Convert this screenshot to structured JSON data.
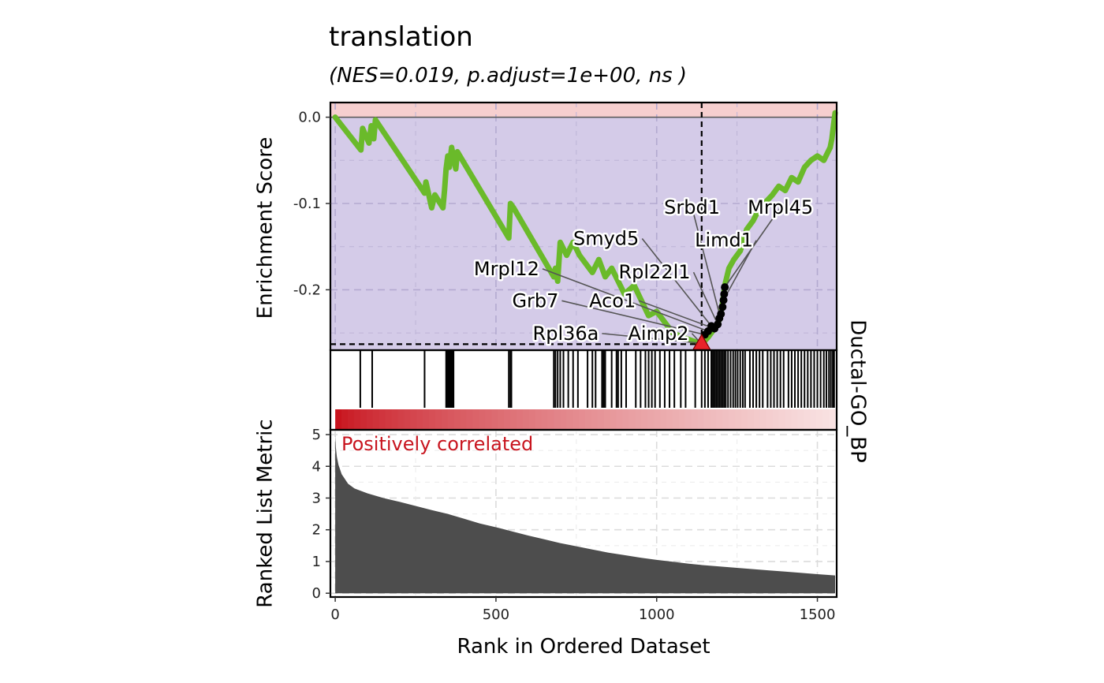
{
  "chart_data": {
    "type": "line",
    "title": "translation",
    "subtitle": "(NES=0.019, p.adjust=1e+00, ns  )",
    "facet_label": "Ductal-GO_BP",
    "xlabel": "Rank in Ordered Dataset",
    "x_ticks": [
      "0",
      "500",
      "1000",
      "1500"
    ],
    "xlim": [
      -15,
      1560
    ],
    "n_genes": 1555,
    "colors": {
      "running_score": "#6aba2a",
      "negative_bg": "#d4cbe8",
      "positive_bg": "#f6cfcf",
      "metric_area": "#4d4d4d",
      "gradient_high": "#c8141e",
      "gradient_low": "#f9e4e4",
      "annotation": "#c8141e",
      "leading_edge_marker": "#e8232a"
    },
    "enrichment_panel": {
      "ylabel": "Enrichment Score",
      "ylim": [
        -0.27,
        0.017
      ],
      "y_ticks": [
        "0.0",
        "-0.1",
        "-0.2"
      ],
      "y_tick_values": [
        0.0,
        -0.1,
        -0.2
      ],
      "max_deviation": {
        "rank": 1140,
        "es": -0.263
      },
      "running_score": [
        [
          0,
          0.0
        ],
        [
          80,
          -0.038
        ],
        [
          85,
          -0.013
        ],
        [
          105,
          -0.03
        ],
        [
          112,
          -0.01
        ],
        [
          120,
          -0.025
        ],
        [
          125,
          -0.003
        ],
        [
          278,
          -0.088
        ],
        [
          282,
          -0.075
        ],
        [
          300,
          -0.105
        ],
        [
          310,
          -0.09
        ],
        [
          335,
          -0.105
        ],
        [
          340,
          -0.085
        ],
        [
          345,
          -0.06
        ],
        [
          350,
          -0.045
        ],
        [
          355,
          -0.058
        ],
        [
          362,
          -0.035
        ],
        [
          375,
          -0.06
        ],
        [
          380,
          -0.04
        ],
        [
          540,
          -0.14
        ],
        [
          545,
          -0.1
        ],
        [
          555,
          -0.105
        ],
        [
          680,
          -0.185
        ],
        [
          685,
          -0.175
        ],
        [
          692,
          -0.19
        ],
        [
          700,
          -0.145
        ],
        [
          720,
          -0.16
        ],
        [
          740,
          -0.145
        ],
        [
          760,
          -0.16
        ],
        [
          800,
          -0.18
        ],
        [
          820,
          -0.165
        ],
        [
          840,
          -0.185
        ],
        [
          860,
          -0.175
        ],
        [
          900,
          -0.205
        ],
        [
          930,
          -0.195
        ],
        [
          975,
          -0.23
        ],
        [
          1000,
          -0.225
        ],
        [
          1050,
          -0.25
        ],
        [
          1080,
          -0.255
        ],
        [
          1140,
          -0.263
        ],
        [
          1160,
          -0.255
        ],
        [
          1180,
          -0.245
        ],
        [
          1195,
          -0.235
        ],
        [
          1205,
          -0.215
        ],
        [
          1212,
          -0.195
        ],
        [
          1225,
          -0.175
        ],
        [
          1240,
          -0.165
        ],
        [
          1260,
          -0.155
        ],
        [
          1280,
          -0.13
        ],
        [
          1300,
          -0.12
        ],
        [
          1320,
          -0.105
        ],
        [
          1340,
          -0.098
        ],
        [
          1360,
          -0.09
        ],
        [
          1380,
          -0.08
        ],
        [
          1400,
          -0.085
        ],
        [
          1420,
          -0.07
        ],
        [
          1440,
          -0.075
        ],
        [
          1460,
          -0.058
        ],
        [
          1480,
          -0.05
        ],
        [
          1500,
          -0.045
        ],
        [
          1520,
          -0.05
        ],
        [
          1540,
          -0.035
        ],
        [
          1545,
          -0.025
        ],
        [
          1550,
          -0.01
        ],
        [
          1555,
          0.005
        ]
      ],
      "leading_edge_points": [
        [
          1140,
          -0.263
        ],
        [
          1150,
          -0.252
        ],
        [
          1160,
          -0.248
        ],
        [
          1170,
          -0.242
        ],
        [
          1180,
          -0.245
        ],
        [
          1190,
          -0.24
        ],
        [
          1195,
          -0.233
        ],
        [
          1200,
          -0.228
        ],
        [
          1205,
          -0.22
        ],
        [
          1208,
          -0.212
        ],
        [
          1210,
          -0.205
        ],
        [
          1212,
          -0.197
        ]
      ],
      "gene_labels": [
        {
          "text": "Srbd1",
          "lx": 1110,
          "ly": -0.112,
          "px": 1200,
          "py": -0.235,
          "anchor": "middle"
        },
        {
          "text": "Mrpl45",
          "lx": 1385,
          "ly": -0.112,
          "px": 1212,
          "py": -0.197,
          "anchor": "middle"
        },
        {
          "text": "Limd1",
          "lx": 1300,
          "ly": -0.15,
          "px": 1208,
          "py": -0.212,
          "anchor": "end"
        },
        {
          "text": "Smyd5",
          "lx": 945,
          "ly": -0.148,
          "px": 1170,
          "py": -0.242,
          "anchor": "end"
        },
        {
          "text": "Rpl22l1",
          "lx": 1105,
          "ly": -0.187,
          "px": 1190,
          "py": -0.24,
          "anchor": "end"
        },
        {
          "text": "Mrpl12",
          "lx": 635,
          "ly": -0.183,
          "px": 1160,
          "py": -0.248,
          "anchor": "end"
        },
        {
          "text": "Grb7",
          "lx": 695,
          "ly": -0.22,
          "px": 1150,
          "py": -0.252,
          "anchor": "end"
        },
        {
          "text": "Aco1",
          "lx": 935,
          "ly": -0.22,
          "px": 1180,
          "py": -0.245,
          "anchor": "end"
        },
        {
          "text": "Rpl36a",
          "lx": 820,
          "ly": -0.258,
          "px": 1140,
          "py": -0.262,
          "anchor": "end"
        },
        {
          "text": "Aimp2",
          "lx": 1100,
          "ly": -0.258,
          "px": 1140,
          "py": -0.263,
          "anchor": "end"
        }
      ]
    },
    "hits_panel": {
      "hit_ranks": [
        78,
        115,
        278,
        345,
        348,
        352,
        356,
        360,
        364,
        368,
        540,
        545,
        548,
        680,
        685,
        692,
        700,
        710,
        725,
        740,
        755,
        785,
        800,
        810,
        830,
        835,
        840,
        860,
        875,
        880,
        890,
        905,
        935,
        950,
        965,
        975,
        985,
        995,
        1010,
        1025,
        1040,
        1055,
        1075,
        1090,
        1120,
        1140,
        1150,
        1160,
        1170,
        1175,
        1180,
        1185,
        1190,
        1195,
        1200,
        1205,
        1210,
        1215,
        1222,
        1230,
        1238,
        1245,
        1252,
        1260,
        1268,
        1275,
        1290,
        1300,
        1310,
        1320,
        1330,
        1345,
        1355,
        1365,
        1375,
        1385,
        1395,
        1410,
        1420,
        1430,
        1440,
        1450,
        1460,
        1470,
        1480,
        1490,
        1500,
        1510,
        1520,
        1528,
        1536,
        1542,
        1548,
        1552
      ]
    },
    "metric_panel": {
      "ylabel": "Ranked List Metric",
      "ylim": [
        -0.12,
        5.15
      ],
      "y_ticks": [
        "0",
        "1",
        "2",
        "3",
        "4",
        "5"
      ],
      "y_tick_values": [
        0,
        1,
        2,
        3,
        4,
        5
      ],
      "annotation": "Positively correlated",
      "metric_curve": [
        [
          0,
          5.0
        ],
        [
          2,
          4.6
        ],
        [
          5,
          4.3
        ],
        [
          10,
          4.05
        ],
        [
          20,
          3.75
        ],
        [
          40,
          3.45
        ],
        [
          60,
          3.3
        ],
        [
          100,
          3.15
        ],
        [
          150,
          3.0
        ],
        [
          200,
          2.88
        ],
        [
          250,
          2.75
        ],
        [
          300,
          2.62
        ],
        [
          350,
          2.5
        ],
        [
          400,
          2.35
        ],
        [
          450,
          2.2
        ],
        [
          500,
          2.08
        ],
        [
          550,
          1.95
        ],
        [
          600,
          1.82
        ],
        [
          650,
          1.7
        ],
        [
          700,
          1.58
        ],
        [
          750,
          1.48
        ],
        [
          800,
          1.38
        ],
        [
          850,
          1.28
        ],
        [
          900,
          1.2
        ],
        [
          950,
          1.12
        ],
        [
          1000,
          1.05
        ],
        [
          1050,
          0.99
        ],
        [
          1100,
          0.93
        ],
        [
          1150,
          0.88
        ],
        [
          1200,
          0.84
        ],
        [
          1250,
          0.8
        ],
        [
          1300,
          0.76
        ],
        [
          1350,
          0.72
        ],
        [
          1400,
          0.68
        ],
        [
          1450,
          0.64
        ],
        [
          1500,
          0.6
        ],
        [
          1555,
          0.56
        ]
      ]
    }
  }
}
